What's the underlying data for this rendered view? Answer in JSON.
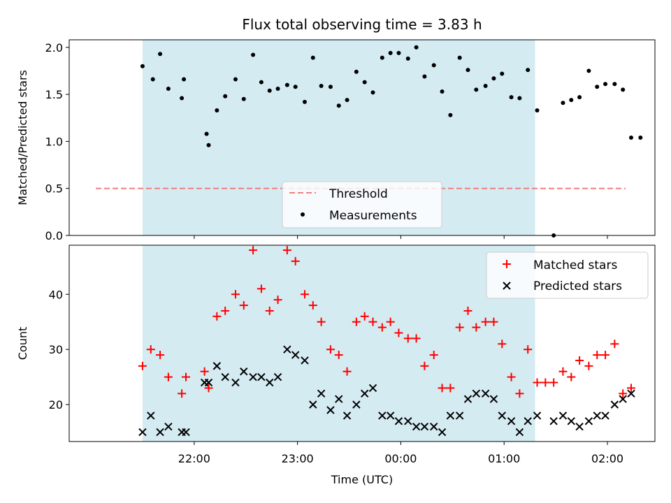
{
  "chart_data": {
    "title": "Flux total observing time = 3.83 h",
    "xlabel": "Time (UTC)",
    "x_tick_labels": [
      "22:00",
      "23:00",
      "00:00",
      "01:00",
      "02:00"
    ],
    "x_tick_hours": [
      22,
      23,
      24,
      25,
      26
    ],
    "x_range_hours": [
      20.79,
      26.46
    ],
    "observing_window_hours": [
      21.5,
      25.3
    ],
    "window_color": "#d4ebf2",
    "panels": [
      {
        "id": "ratio",
        "type": "scatter",
        "ylabel": "Matched/Predicted stars",
        "ylim": [
          0,
          2.08
        ],
        "yticks": [
          0.0,
          0.5,
          1.0,
          1.5,
          2.0
        ],
        "ytick_labels": [
          "0.0",
          "0.5",
          "1.0",
          "1.5",
          "2.0"
        ],
        "threshold": {
          "name": "Threshold",
          "value": 0.5,
          "color": "#f08080"
        },
        "legend": {
          "position": "lower-center",
          "entries": [
            "Threshold",
            "Measurements"
          ]
        },
        "series": [
          {
            "name": "Measurements",
            "color": "#000000",
            "marker": "dot",
            "points": [
              [
                21.5,
                1.8
              ],
              [
                21.6,
                1.66
              ],
              [
                21.67,
                1.93
              ],
              [
                21.75,
                1.56
              ],
              [
                21.88,
                1.46
              ],
              [
                21.9,
                1.66
              ],
              [
                22.12,
                1.08
              ],
              [
                22.14,
                0.96
              ],
              [
                22.22,
                1.33
              ],
              [
                22.3,
                1.48
              ],
              [
                22.4,
                1.66
              ],
              [
                22.48,
                1.45
              ],
              [
                22.57,
                1.92
              ],
              [
                22.65,
                1.63
              ],
              [
                22.73,
                1.54
              ],
              [
                22.81,
                1.56
              ],
              [
                22.9,
                1.6
              ],
              [
                22.98,
                1.58
              ],
              [
                23.07,
                1.42
              ],
              [
                23.15,
                1.89
              ],
              [
                23.23,
                1.59
              ],
              [
                23.32,
                1.58
              ],
              [
                23.4,
                1.38
              ],
              [
                23.48,
                1.44
              ],
              [
                23.57,
                1.74
              ],
              [
                23.65,
                1.63
              ],
              [
                23.73,
                1.52
              ],
              [
                23.82,
                1.89
              ],
              [
                23.9,
                1.94
              ],
              [
                23.98,
                1.94
              ],
              [
                24.07,
                1.88
              ],
              [
                24.15,
                2.0
              ],
              [
                24.23,
                1.69
              ],
              [
                24.32,
                1.81
              ],
              [
                24.4,
                1.53
              ],
              [
                24.48,
                1.28
              ],
              [
                24.57,
                1.89
              ],
              [
                24.65,
                1.76
              ],
              [
                24.73,
                1.55
              ],
              [
                24.82,
                1.59
              ],
              [
                24.9,
                1.67
              ],
              [
                24.98,
                1.72
              ],
              [
                25.07,
                1.47
              ],
              [
                25.15,
                1.46
              ],
              [
                25.23,
                1.76
              ],
              [
                25.32,
                1.33
              ],
              [
                25.48,
                0.0
              ],
              [
                25.57,
                1.41
              ],
              [
                25.65,
                1.44
              ],
              [
                25.73,
                1.47
              ],
              [
                25.82,
                1.75
              ],
              [
                25.9,
                1.58
              ],
              [
                25.98,
                1.61
              ],
              [
                26.07,
                1.61
              ],
              [
                26.15,
                1.55
              ],
              [
                26.23,
                1.04
              ],
              [
                26.32,
                1.04
              ]
            ]
          }
        ]
      },
      {
        "id": "counts",
        "type": "scatter",
        "ylabel": "Count",
        "ylim": [
          13.3,
          48.9
        ],
        "yticks": [
          20,
          30,
          40
        ],
        "ytick_labels": [
          "20",
          "30",
          "40"
        ],
        "legend": {
          "position": "top-right",
          "entries": [
            "Matched stars",
            "Predicted stars"
          ]
        },
        "series": [
          {
            "name": "Matched stars",
            "color": "#ff0000",
            "marker": "plus",
            "points": [
              [
                21.5,
                27
              ],
              [
                21.58,
                30
              ],
              [
                21.67,
                29
              ],
              [
                21.75,
                25
              ],
              [
                21.88,
                22
              ],
              [
                21.92,
                25
              ],
              [
                22.1,
                26
              ],
              [
                22.14,
                23
              ],
              [
                22.22,
                36
              ],
              [
                22.3,
                37
              ],
              [
                22.4,
                40
              ],
              [
                22.48,
                38
              ],
              [
                22.57,
                48
              ],
              [
                22.65,
                41
              ],
              [
                22.73,
                37
              ],
              [
                22.81,
                39
              ],
              [
                22.9,
                48
              ],
              [
                22.98,
                46
              ],
              [
                23.07,
                40
              ],
              [
                23.15,
                38
              ],
              [
                23.23,
                35
              ],
              [
                23.32,
                30
              ],
              [
                23.4,
                29
              ],
              [
                23.48,
                26
              ],
              [
                23.57,
                35
              ],
              [
                23.65,
                36
              ],
              [
                23.73,
                35
              ],
              [
                23.82,
                34
              ],
              [
                23.9,
                35
              ],
              [
                23.98,
                33
              ],
              [
                24.07,
                32
              ],
              [
                24.15,
                32
              ],
              [
                24.23,
                27
              ],
              [
                24.32,
                29
              ],
              [
                24.4,
                23
              ],
              [
                24.48,
                23
              ],
              [
                24.57,
                34
              ],
              [
                24.65,
                37
              ],
              [
                24.73,
                34
              ],
              [
                24.82,
                35
              ],
              [
                24.9,
                35
              ],
              [
                24.98,
                31
              ],
              [
                25.07,
                25
              ],
              [
                25.15,
                22
              ],
              [
                25.23,
                30
              ],
              [
                25.32,
                24
              ],
              [
                25.4,
                24
              ],
              [
                25.48,
                24
              ],
              [
                25.57,
                26
              ],
              [
                25.65,
                25
              ],
              [
                25.73,
                28
              ],
              [
                25.82,
                27
              ],
              [
                25.9,
                29
              ],
              [
                25.98,
                29
              ],
              [
                26.07,
                31
              ],
              [
                26.15,
                22
              ],
              [
                26.23,
                23
              ]
            ]
          },
          {
            "name": "Predicted stars",
            "color": "#000000",
            "marker": "x",
            "points": [
              [
                21.5,
                15
              ],
              [
                21.58,
                18
              ],
              [
                21.67,
                15
              ],
              [
                21.75,
                16
              ],
              [
                21.88,
                15
              ],
              [
                21.92,
                15
              ],
              [
                22.1,
                24
              ],
              [
                22.14,
                24
              ],
              [
                22.22,
                27
              ],
              [
                22.3,
                25
              ],
              [
                22.4,
                24
              ],
              [
                22.48,
                26
              ],
              [
                22.57,
                25
              ],
              [
                22.65,
                25
              ],
              [
                22.73,
                24
              ],
              [
                22.81,
                25
              ],
              [
                22.9,
                30
              ],
              [
                22.98,
                29
              ],
              [
                23.07,
                28
              ],
              [
                23.15,
                20
              ],
              [
                23.23,
                22
              ],
              [
                23.32,
                19
              ],
              [
                23.4,
                21
              ],
              [
                23.48,
                18
              ],
              [
                23.57,
                20
              ],
              [
                23.65,
                22
              ],
              [
                23.73,
                23
              ],
              [
                23.82,
                18
              ],
              [
                23.9,
                18
              ],
              [
                23.98,
                17
              ],
              [
                24.07,
                17
              ],
              [
                24.15,
                16
              ],
              [
                24.23,
                16
              ],
              [
                24.32,
                16
              ],
              [
                24.4,
                15
              ],
              [
                24.48,
                18
              ],
              [
                24.57,
                18
              ],
              [
                24.65,
                21
              ],
              [
                24.73,
                22
              ],
              [
                24.82,
                22
              ],
              [
                24.9,
                21
              ],
              [
                24.98,
                18
              ],
              [
                25.07,
                17
              ],
              [
                25.15,
                15
              ],
              [
                25.23,
                17
              ],
              [
                25.32,
                18
              ],
              [
                25.48,
                17
              ],
              [
                25.57,
                18
              ],
              [
                25.65,
                17
              ],
              [
                25.73,
                16
              ],
              [
                25.82,
                17
              ],
              [
                25.9,
                18
              ],
              [
                25.98,
                18
              ],
              [
                26.07,
                20
              ],
              [
                26.15,
                21
              ],
              [
                26.23,
                22
              ]
            ]
          }
        ]
      }
    ]
  }
}
